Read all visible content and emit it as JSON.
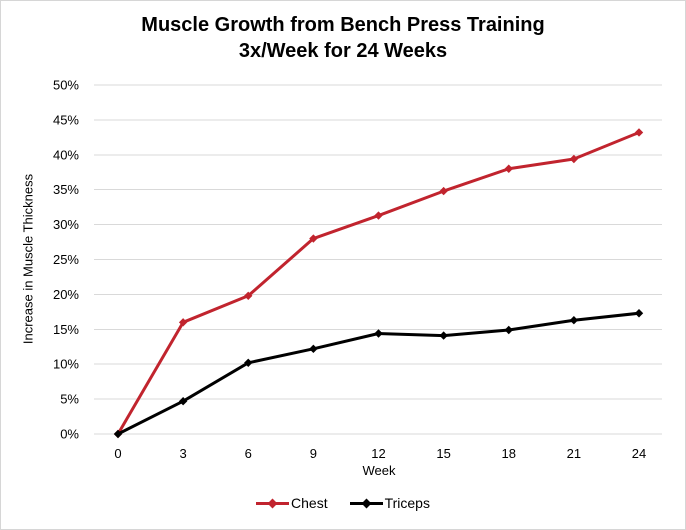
{
  "chart_data": {
    "type": "line",
    "title_line1": "Muscle Growth from Bench Press Training",
    "title_line2": "3x/Week for 24 Weeks",
    "xlabel": "Week",
    "ylabel": "Increase in Muscle Thickness",
    "x": [
      0,
      3,
      6,
      9,
      12,
      15,
      18,
      21,
      24
    ],
    "xtick_labels": [
      "0",
      "3",
      "6",
      "9",
      "12",
      "15",
      "18",
      "21",
      "24"
    ],
    "series": [
      {
        "name": "Chest",
        "color": "#c1242e",
        "values": [
          0,
          16,
          19.8,
          28,
          31.3,
          34.8,
          38,
          39.4,
          43.2
        ]
      },
      {
        "name": "Triceps",
        "color": "#000000",
        "values": [
          0,
          4.7,
          10.2,
          12.2,
          14.4,
          14.1,
          14.9,
          16.3,
          17.3
        ]
      }
    ],
    "xlim": [
      0,
      24
    ],
    "ylim": [
      0,
      50
    ],
    "ytick_step": 5,
    "ytick_labels": [
      "0%",
      "5%",
      "10%",
      "15%",
      "20%",
      "25%",
      "30%",
      "35%",
      "40%",
      "45%",
      "50%"
    ],
    "grid": "horizontal",
    "legend_position": "bottom",
    "marker": "diamond"
  },
  "colors": {
    "background": "#ffffff",
    "grid": "#d9d9d9",
    "text": "#000000",
    "border": "#d6d6d6"
  }
}
